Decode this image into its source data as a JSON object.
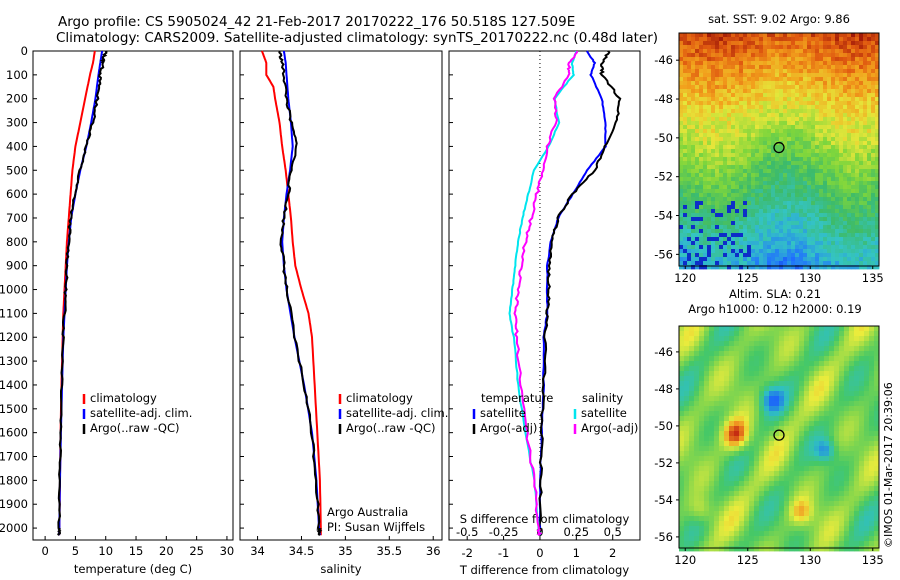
{
  "title": {
    "line1": "Argo profile: CS 5905024_42 21-Feb-2017 20170222_176 50.518S 127.509E",
    "line2": "Climatology: CARS2009. Satellite-adjusted climatology: synTS_20170222.nc (0.48d later)"
  },
  "credit": "©IMOS 01-Mar-2017 20:39:06",
  "colors": {
    "climatology": "#ff0000",
    "satellite": "#0000ff",
    "argo": "#000000",
    "sat_salinity": "#00e5ee",
    "argo_salinity": "#ff00ff"
  },
  "chart_data": [
    {
      "type": "line",
      "xlabel": "temperature (deg C)",
      "ylabel": "",
      "xlim": [
        -2,
        31
      ],
      "ylim": [
        2050,
        0
      ],
      "xticks": [
        0,
        5,
        10,
        15,
        20,
        25,
        30
      ],
      "yticks": [
        0,
        100,
        200,
        300,
        400,
        500,
        600,
        700,
        800,
        900,
        1000,
        1100,
        1200,
        1300,
        1400,
        1500,
        1600,
        1700,
        1800,
        1900,
        2000
      ],
      "legend": {
        "placement": "lower-center",
        "entries": [
          "climatology",
          "satellite-adj. clim.",
          "Argo(..raw -QC)"
        ]
      },
      "series": [
        {
          "name": "climatology",
          "y": [
            0,
            50,
            100,
            200,
            300,
            400,
            500,
            600,
            700,
            800,
            900,
            1000,
            1100,
            1200,
            1400,
            1600,
            1800,
            2000,
            2030
          ],
          "x": [
            8.2,
            7.9,
            7.4,
            6.6,
            5.8,
            5.0,
            4.5,
            4.2,
            3.9,
            3.6,
            3.4,
            3.2,
            3.0,
            2.9,
            2.7,
            2.55,
            2.45,
            2.35,
            2.3
          ]
        },
        {
          "name": "satellite-adj. clim.",
          "y": [
            0,
            50,
            100,
            200,
            300,
            400,
            500,
            600,
            700,
            800,
            900,
            1000,
            1100,
            1200,
            1400,
            1600,
            1800,
            2000,
            2030
          ],
          "x": [
            9.4,
            9.1,
            8.8,
            8.3,
            7.6,
            6.8,
            5.8,
            5.0,
            4.3,
            3.9,
            3.6,
            3.4,
            3.2,
            3.0,
            2.8,
            2.6,
            2.45,
            2.35,
            2.3
          ]
        },
        {
          "name": "Argo(..raw -QC)",
          "y": [
            0,
            30,
            50,
            100,
            150,
            200,
            300,
            400,
            500,
            600,
            700,
            800,
            900,
            1000,
            1100,
            1200,
            1400,
            1600,
            1800,
            2000,
            2030
          ],
          "x": [
            10.1,
            9.6,
            9.6,
            9.1,
            8.9,
            8.6,
            7.9,
            6.8,
            5.7,
            4.9,
            4.2,
            3.9,
            3.6,
            3.4,
            3.2,
            3.0,
            2.8,
            2.6,
            2.45,
            2.35,
            2.3
          ]
        }
      ]
    },
    {
      "type": "line",
      "xlabel": "salinity",
      "ylabel": "",
      "xlim": [
        33.8,
        36.1
      ],
      "ylim": [
        2050,
        0
      ],
      "xticks": [
        34,
        34.5,
        35,
        35.5,
        36
      ],
      "legend": {
        "placement": "lower-right",
        "entries": [
          "climatology",
          "satellite-adj. clim.",
          "Argo(..raw -QC)"
        ]
      },
      "annotation": [
        "Argo Australia",
        "PI: Susan Wijffels"
      ],
      "series": [
        {
          "name": "climatology",
          "y": [
            0,
            50,
            100,
            150,
            200,
            300,
            400,
            500,
            600,
            700,
            800,
            900,
            1000,
            1100,
            1200,
            1400,
            1600,
            1800,
            2000,
            2030
          ],
          "x": [
            34.05,
            34.1,
            34.1,
            34.18,
            34.2,
            34.25,
            34.28,
            34.32,
            34.35,
            34.38,
            34.4,
            34.43,
            34.5,
            34.58,
            34.62,
            34.65,
            34.68,
            34.71,
            34.72,
            34.72
          ]
        },
        {
          "name": "satellite-adj. clim.",
          "y": [
            0,
            50,
            100,
            200,
            300,
            400,
            500,
            600,
            700,
            800,
            900,
            1000,
            1200,
            1400,
            1600,
            1800,
            2000,
            2030
          ],
          "x": [
            34.3,
            34.32,
            34.33,
            34.35,
            34.38,
            34.4,
            34.37,
            34.33,
            34.3,
            34.28,
            34.3,
            34.33,
            34.42,
            34.53,
            34.62,
            34.67,
            34.7,
            34.71
          ]
        },
        {
          "name": "Argo(..raw -QC)",
          "y": [
            0,
            50,
            100,
            200,
            300,
            400,
            500,
            600,
            700,
            800,
            900,
            1000,
            1200,
            1400,
            1600,
            1800,
            2000,
            2030
          ],
          "x": [
            34.25,
            34.28,
            34.3,
            34.33,
            34.38,
            34.45,
            34.38,
            34.35,
            34.3,
            34.27,
            34.3,
            34.33,
            34.42,
            34.53,
            34.62,
            34.67,
            34.7,
            34.71
          ]
        }
      ]
    },
    {
      "type": "line",
      "xlabel": "T difference from climatology",
      "xlabel_top": "S difference from climatology",
      "xlim": [
        -2.5,
        2.75
      ],
      "ylim": [
        2050,
        0
      ],
      "xticks": [
        -2,
        -1,
        0,
        1,
        2
      ],
      "xticks_S": [
        "-0.5",
        "-0.25",
        "0",
        "0.25",
        "0.5"
      ],
      "zero_line": "dotted",
      "legend": {
        "placement": "lower-center",
        "temperature_title": "temperature",
        "salinity_title": "salinity",
        "entries_T": [
          "satellite",
          "Argo(-adj)"
        ],
        "entries_S": [
          "satellite",
          "Argo(-adj)"
        ]
      },
      "series": [
        {
          "name": "satellite",
          "variable": "temperature",
          "y": [
            0,
            50,
            100,
            200,
            300,
            400,
            500,
            600,
            700,
            800,
            900,
            1000,
            1100,
            1200,
            1400,
            1600,
            1800,
            2000,
            2030
          ],
          "x": [
            1.3,
            1.5,
            1.4,
            1.7,
            1.8,
            1.8,
            1.3,
            0.9,
            0.5,
            0.3,
            0.2,
            0.2,
            0.2,
            0.1,
            0.1,
            0.05,
            0.0,
            0.0,
            0.0
          ]
        },
        {
          "name": "Argo(-adj)",
          "variable": "temperature",
          "y": [
            0,
            50,
            100,
            200,
            300,
            400,
            500,
            600,
            700,
            800,
            900,
            1000,
            1100,
            1200,
            1400,
            1600,
            1800,
            2000,
            2030
          ],
          "x": [
            1.9,
            1.7,
            1.7,
            2.2,
            2.1,
            1.8,
            1.5,
            0.9,
            0.5,
            0.3,
            0.25,
            0.25,
            0.2,
            0.15,
            0.1,
            0.05,
            0.02,
            0.0,
            0.0
          ]
        },
        {
          "name": "satellite",
          "variable": "salinity",
          "y": [
            0,
            50,
            100,
            200,
            300,
            400,
            500,
            600,
            700,
            800,
            900,
            1000,
            1100,
            1200,
            1400,
            1600,
            1800,
            2000,
            2030
          ],
          "x": [
            0.25,
            0.22,
            0.23,
            0.1,
            0.13,
            0.06,
            -0.04,
            -0.08,
            -0.12,
            -0.15,
            -0.17,
            -0.19,
            -0.21,
            -0.18,
            -0.15,
            -0.1,
            -0.04,
            -0.01,
            0.0
          ]
        },
        {
          "name": "Argo(-adj)",
          "variable": "salinity",
          "y": [
            0,
            50,
            100,
            200,
            300,
            400,
            500,
            600,
            700,
            800,
            900,
            1000,
            1100,
            1200,
            1400,
            1600,
            1800,
            2000,
            2030
          ],
          "x": [
            0.26,
            0.2,
            0.2,
            0.1,
            0.11,
            0.05,
            0.02,
            -0.02,
            -0.06,
            -0.1,
            -0.13,
            -0.15,
            -0.17,
            -0.16,
            -0.13,
            -0.09,
            -0.04,
            -0.01,
            0.0
          ]
        }
      ]
    },
    {
      "type": "heatmap",
      "title": "sat. SST: 9.02  Argo: 9.86",
      "xlim": [
        119.5,
        135.5
      ],
      "ylim": [
        -56.6,
        -44.6
      ],
      "xticks": [
        120,
        125,
        130,
        135
      ],
      "yticks": [
        -46,
        -48,
        -50,
        -52,
        -54,
        -56
      ],
      "marker": {
        "lon": 127.5,
        "lat": -50.5
      }
    },
    {
      "type": "heatmap",
      "title_line1": "Altim. SLA: 0.21",
      "title_line2": "Argo h1000: 0.12  h2000: 0.19",
      "xlim": [
        119.5,
        135.5
      ],
      "ylim": [
        -56.6,
        -44.6
      ],
      "xticks": [
        120,
        125,
        130,
        135
      ],
      "yticks": [
        -46,
        -48,
        -50,
        -52,
        -54,
        -56
      ],
      "marker": {
        "lon": 127.5,
        "lat": -50.5
      }
    }
  ]
}
